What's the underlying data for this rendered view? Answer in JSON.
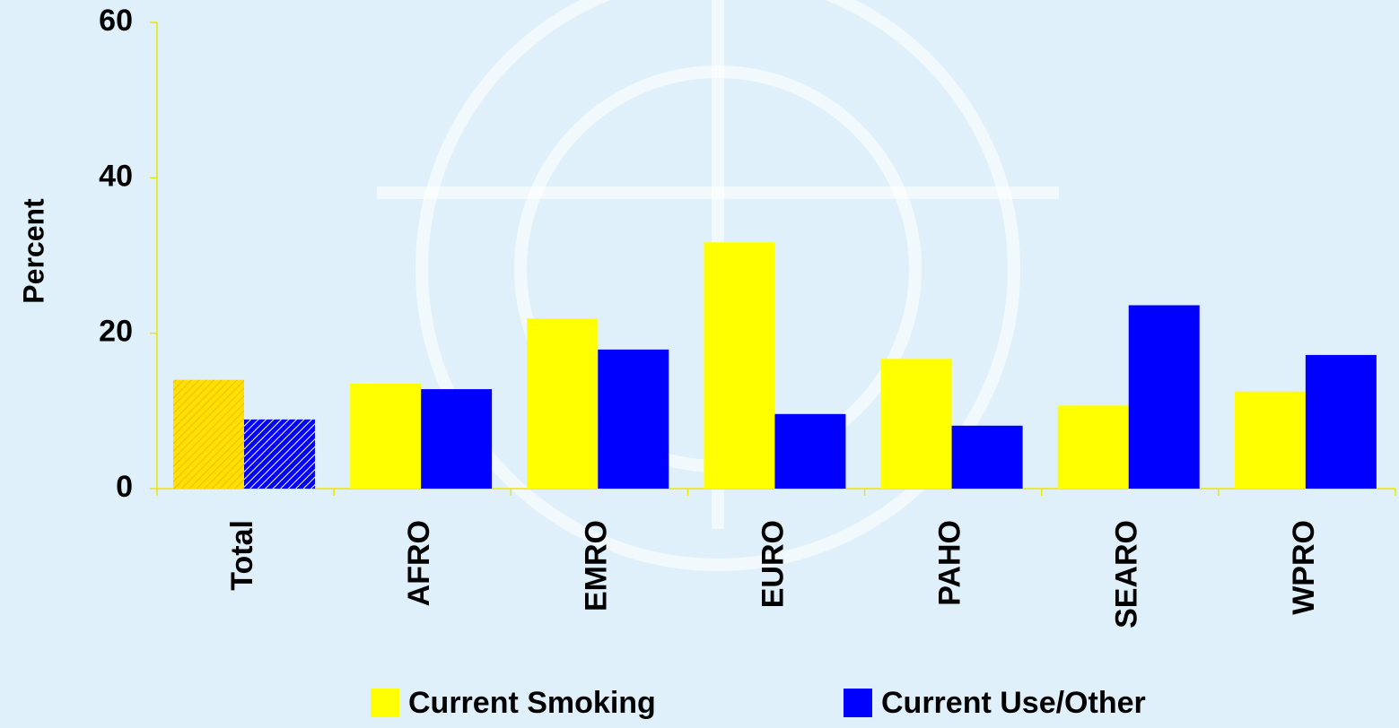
{
  "chart_data": {
    "type": "bar",
    "y_label": "Percent",
    "categories": [
      "Total",
      "AFRO",
      "EMRO",
      "EURO",
      "PAHO",
      "SEARO",
      "WPRO"
    ],
    "series": [
      {
        "name": "Current Smoking",
        "color": "#ffff00",
        "values": [
          14,
          13.5,
          21.9,
          31.7,
          16.7,
          10.7,
          12.5
        ]
      },
      {
        "name": "Current Use/Other",
        "color": "#0000ff",
        "values": [
          8.9,
          12.8,
          17.9,
          9.6,
          8.1,
          23.6,
          17.2
        ]
      }
    ],
    "hatched_categories": [
      "Total"
    ],
    "axis_color": "#e8e800",
    "ylim": [
      0,
      60
    ],
    "yticks": [
      0,
      20,
      40,
      60
    ],
    "legend": "bottom"
  }
}
